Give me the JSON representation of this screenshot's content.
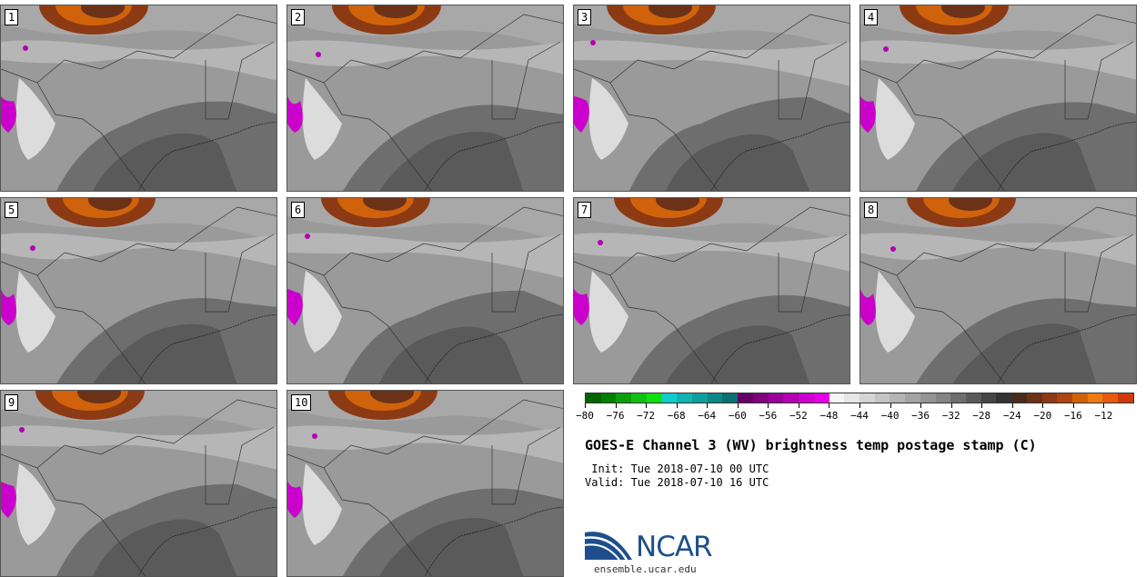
{
  "panels": [
    {
      "label": "1"
    },
    {
      "label": "2"
    },
    {
      "label": "3"
    },
    {
      "label": "4"
    },
    {
      "label": "5"
    },
    {
      "label": "6"
    },
    {
      "label": "7"
    },
    {
      "label": "8"
    },
    {
      "label": "9"
    },
    {
      "label": "10"
    }
  ],
  "colorbar": {
    "colors": [
      "#006400",
      "#008000",
      "#0aa00a",
      "#12c012",
      "#10e010",
      "#11cccc",
      "#10b4b4",
      "#0f9e9e",
      "#0c8888",
      "#0a7070",
      "#660066",
      "#800080",
      "#990099",
      "#b300b3",
      "#cc00cc",
      "#e600e6",
      "#f5f5f5",
      "#e6e6e6",
      "#d4d4d4",
      "#c4c4c4",
      "#b4b4b4",
      "#a4a4a4",
      "#949494",
      "#848484",
      "#6e6e6e",
      "#5a5a5a",
      "#464646",
      "#333333",
      "#4a2a1a",
      "#6b3218",
      "#8c3a14",
      "#ad4510",
      "#d0620c",
      "#ee7a10",
      "#e65a10",
      "#d03a0a"
    ],
    "tick_labels": [
      "-80",
      "-76",
      "-72",
      "-68",
      "-64",
      "-60",
      "-56",
      "-52",
      "-48",
      "-44",
      "-40",
      "-36",
      "-32",
      "-28",
      "-24",
      "-20",
      "-16",
      "-12"
    ],
    "min": -80,
    "max": -8
  },
  "title": "GOES-E Channel 3 (WV) brightness temp postage stamp (C)",
  "init_line": " Init: Tue 2018-07-10 00 UTC",
  "valid_line": "Valid: Tue 2018-07-10 16 UTC",
  "logo": {
    "text": "NCAR",
    "site": "ensemble.ucar.edu"
  }
}
